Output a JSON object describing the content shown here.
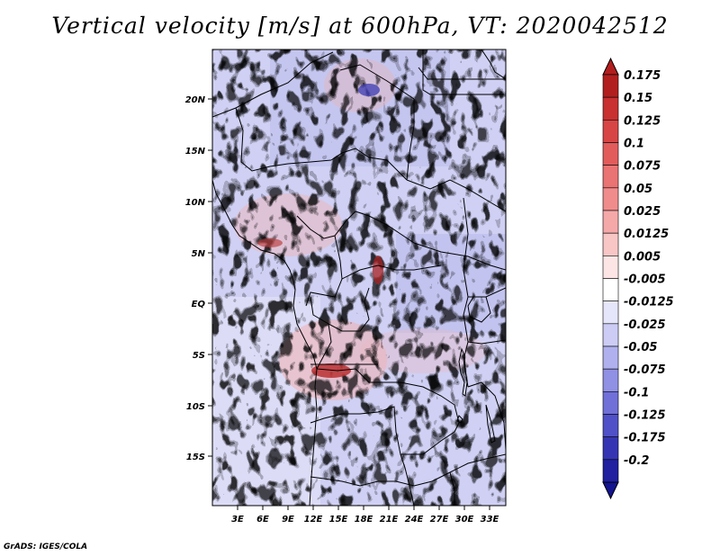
{
  "title": "Vertical velocity [m/s] at 600hPa, VT: 2020042512",
  "credit": "GrADS: IGES/COLA",
  "lat_labels": [
    "20N",
    "15N",
    "10N",
    "5N",
    "EQ",
    "5S",
    "10S",
    "15S"
  ],
  "lon_labels": [
    "3E",
    "6E",
    "9E",
    "12E",
    "15E",
    "18E",
    "21E",
    "24E",
    "27E",
    "30E",
    "33E"
  ],
  "colorbar": {
    "labels": [
      "0.175",
      "0.15",
      "0.125",
      "0.1",
      "0.075",
      "0.05",
      "0.025",
      "0.0125",
      "0.005",
      "-0.005",
      "-0.0125",
      "-0.025",
      "-0.05",
      "-0.075",
      "-0.1",
      "-0.125",
      "-0.175",
      "-0.2"
    ],
    "colors": [
      "#b21e1e",
      "#c93030",
      "#d84545",
      "#e25c5c",
      "#ea7373",
      "#f08c8c",
      "#f5a8a8",
      "#f9c6c6",
      "#fde5e5",
      "#ffffff",
      "#e5e5fb",
      "#ccccf5",
      "#b0b0ee",
      "#9090e4",
      "#7070d8",
      "#5050c8",
      "#3535b4",
      "#2020a0"
    ]
  },
  "map": {
    "lon_range": [
      0,
      35
    ],
    "lat_range": [
      -20,
      25
    ]
  }
}
